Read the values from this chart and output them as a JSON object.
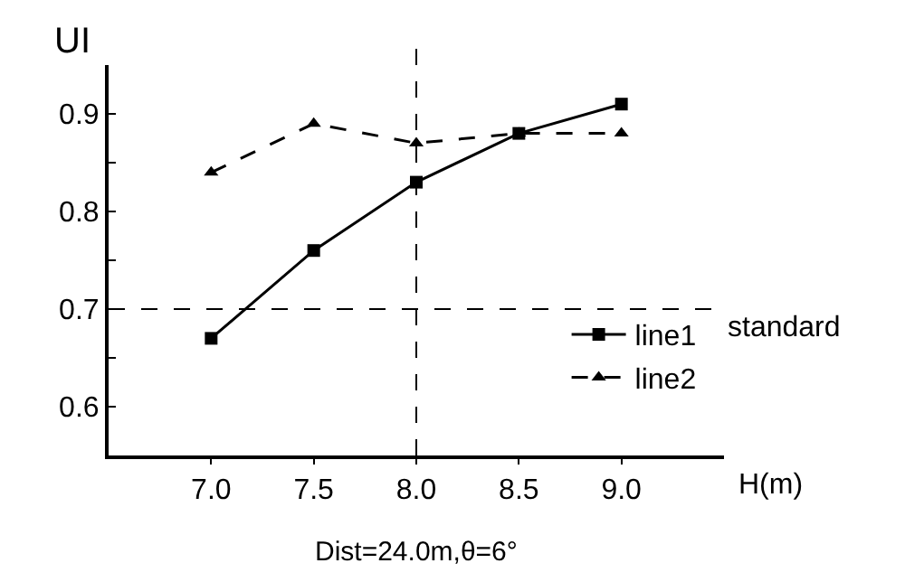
{
  "chart_data": {
    "type": "line",
    "xlabel": "H(m)",
    "ylabel": "UI",
    "x": [
      7.0,
      7.5,
      8.0,
      8.5,
      9.0
    ],
    "series": [
      {
        "name": "line1",
        "color": "#000000",
        "values": [
          0.67,
          0.76,
          0.83,
          0.88,
          0.91
        ],
        "marker": "square",
        "line_style": "solid"
      },
      {
        "name": "line2",
        "color": "#000000",
        "values": [
          0.84,
          0.89,
          0.87,
          0.88,
          0.88
        ],
        "marker": "triangle",
        "line_style": "dashed"
      }
    ],
    "xlim": [
      6.5,
      9.5
    ],
    "xticks": [
      {
        "value": 7.0,
        "label": "7.0"
      },
      {
        "value": 7.5,
        "label": "7.5"
      },
      {
        "value": 8.0,
        "label": "8.0"
      },
      {
        "value": 8.5,
        "label": "8.5"
      },
      {
        "value": 9.0,
        "label": "9.0"
      }
    ],
    "ylim": [
      0.55,
      0.95
    ],
    "yticks": [
      0.6,
      {
        "value": 0.65,
        "label": null
      },
      0.7,
      {
        "value": 0.75,
        "label": null
      },
      0.8,
      {
        "value": 0.85,
        "label": null
      },
      0.9
    ],
    "ref_lines": [
      {
        "axis": "y",
        "value": 0.7,
        "label": "standard",
        "color": "#000000",
        "line_style": "dashed"
      },
      {
        "axis": "x",
        "value": 8.0,
        "color": "#000000",
        "line_style": "dashed"
      }
    ],
    "annotations": [
      "Dist=24.0m,θ=6°"
    ],
    "legend": "bottom right"
  }
}
